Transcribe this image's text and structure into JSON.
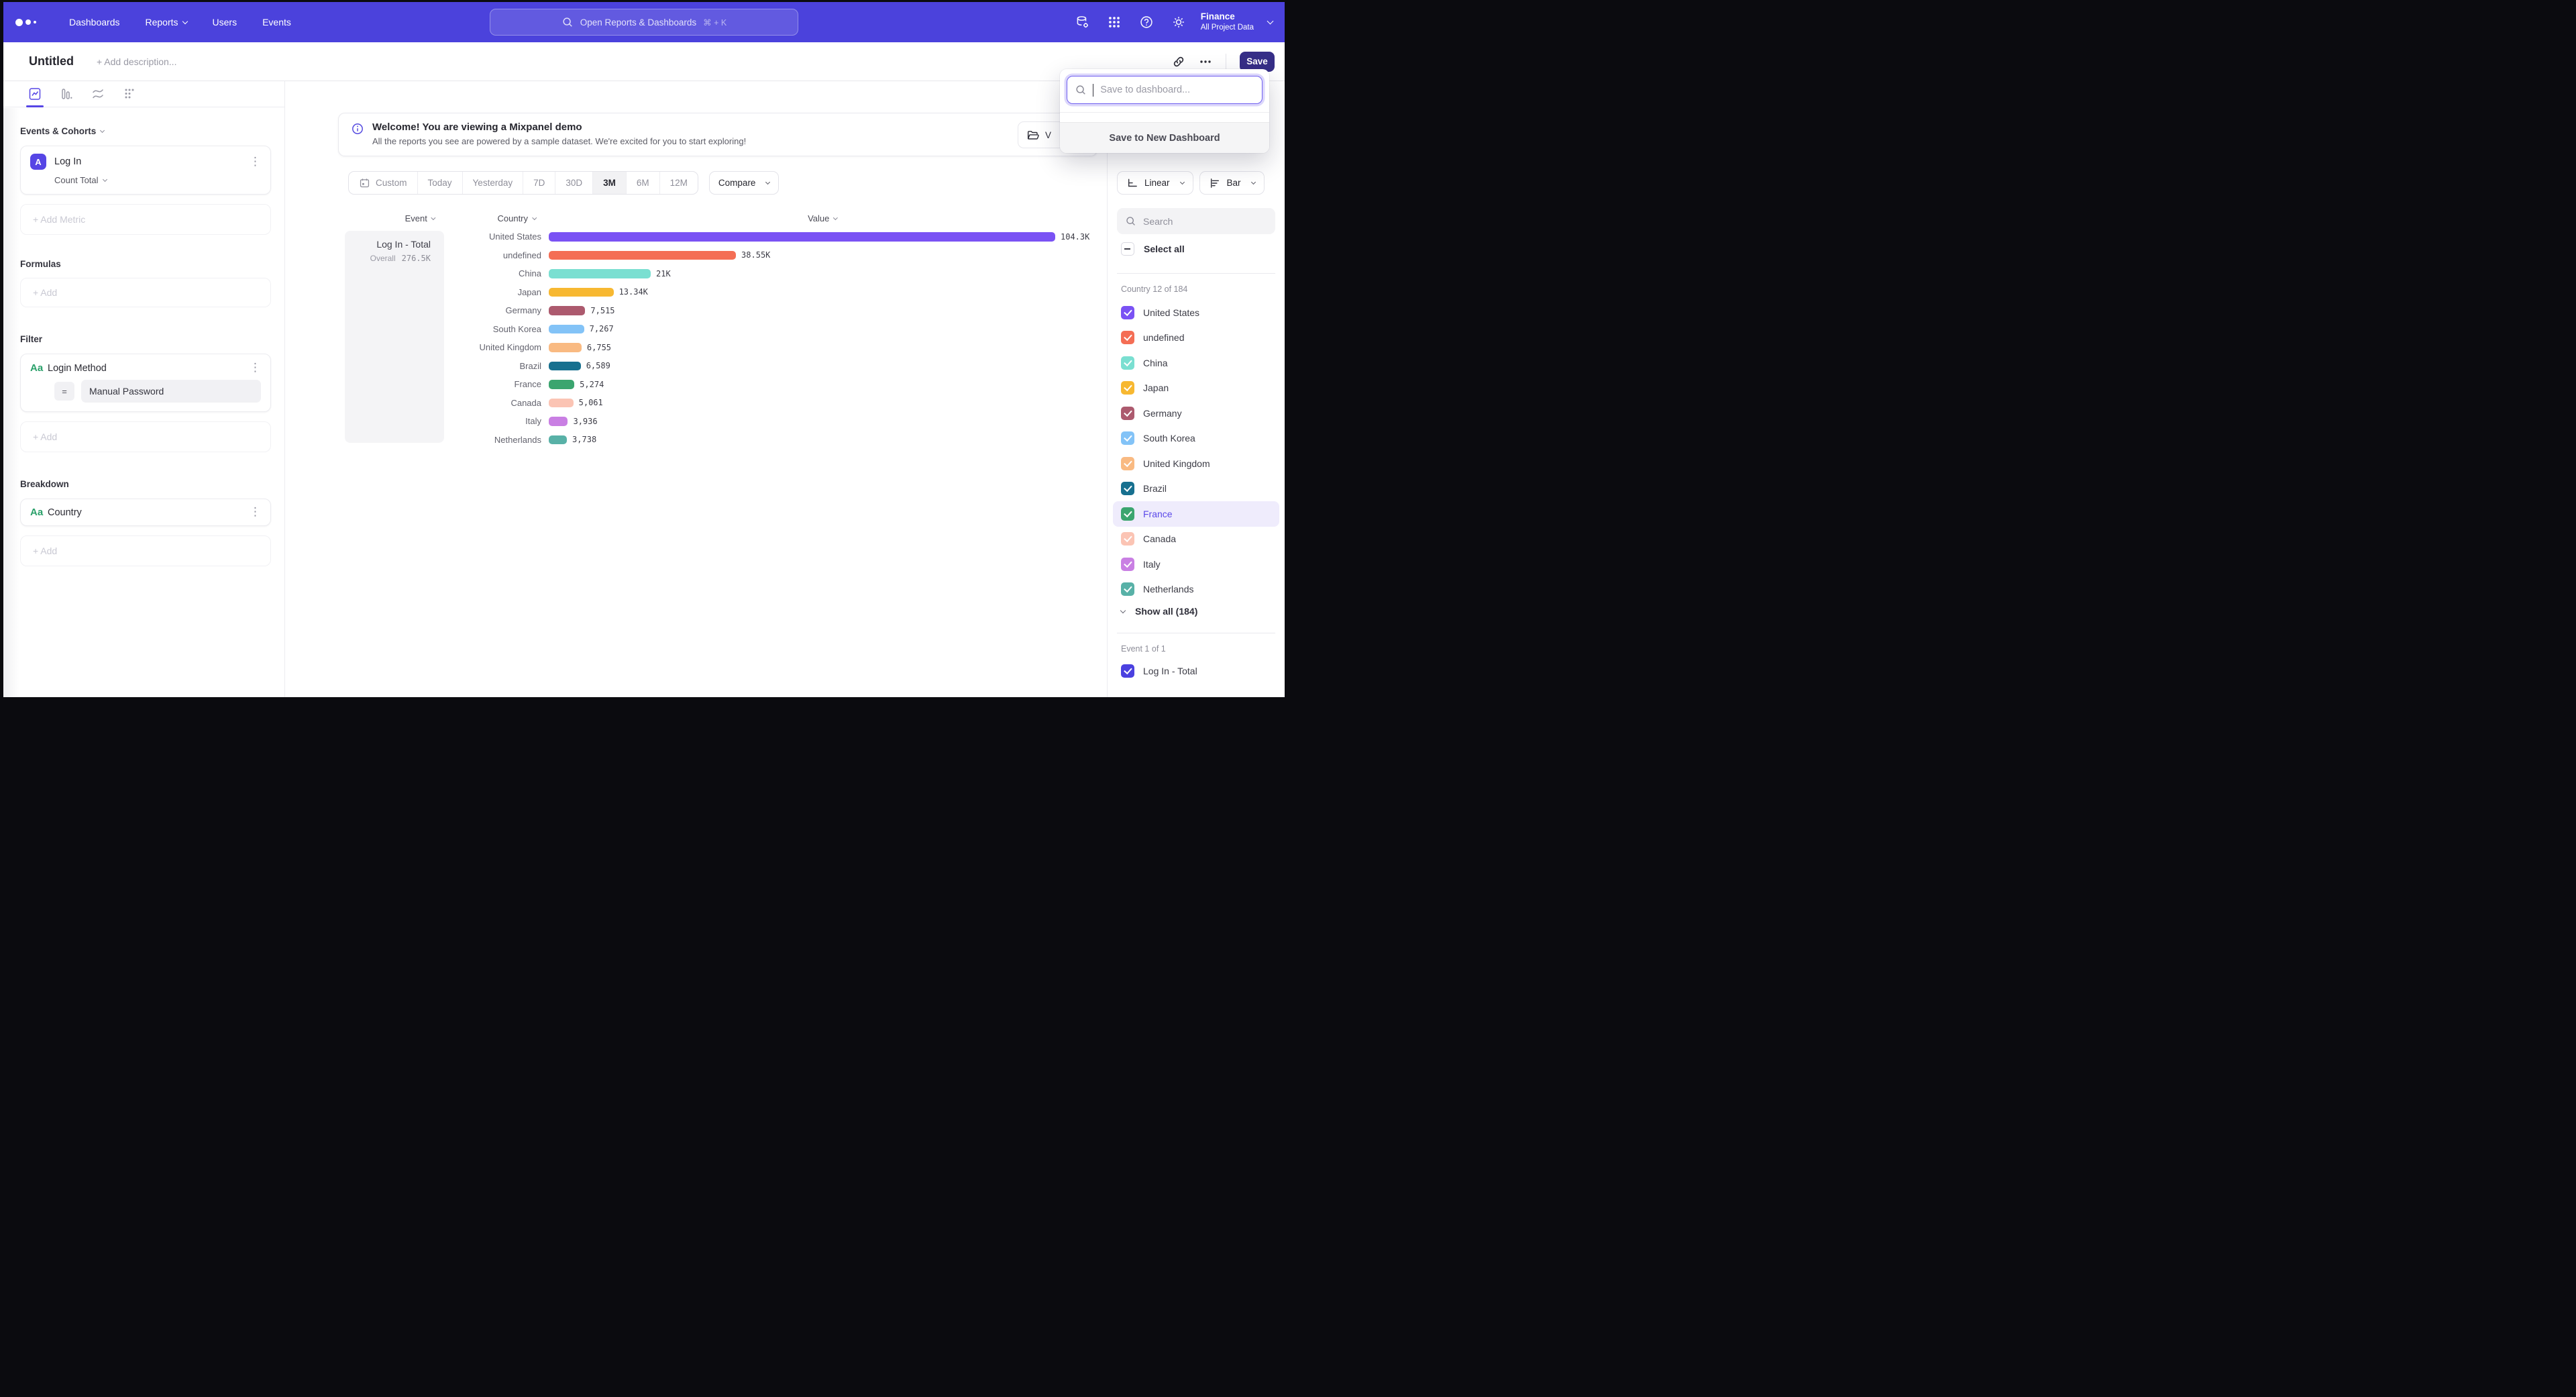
{
  "nav": {
    "items": [
      {
        "label": "Dashboards",
        "has_chevron": false
      },
      {
        "label": "Reports",
        "has_chevron": true
      },
      {
        "label": "Users",
        "has_chevron": false
      },
      {
        "label": "Events",
        "has_chevron": false
      }
    ],
    "search": {
      "placeholder": "Open Reports & Dashboards",
      "shortcut": "⌘ + K"
    },
    "project": {
      "name": "Finance",
      "scope": "All Project Data"
    },
    "icons": [
      "mixpanel-logo",
      "data-settings-icon",
      "apps-grid-icon",
      "help-icon",
      "gear-icon",
      "chevron-down-icon"
    ]
  },
  "titlebar": {
    "title": "Untitled",
    "description_placeholder": "+ Add description...",
    "save_label": "Save",
    "icons": [
      "link-icon",
      "ellipsis-icon"
    ]
  },
  "sidebar": {
    "tabs": [
      "insights",
      "funnels",
      "retention",
      "flows"
    ],
    "events": {
      "heading": "Events & Cohorts",
      "metric_badge": "A",
      "metric_name": "Log In",
      "aggregation": "Count Total",
      "add_label": "+ Add Metric"
    },
    "formulas": {
      "heading": "Formulas",
      "add_label": "+ Add"
    },
    "filter": {
      "heading": "Filter",
      "type_badge": "Aa",
      "property": "Login Method",
      "operator": "=",
      "value": "Manual Password",
      "add_label": "+ Add"
    },
    "breakdown": {
      "heading": "Breakdown",
      "type_badge": "Aa",
      "property": "Country",
      "add_label": "+ Add"
    }
  },
  "banner": {
    "title": "Welcome! You are viewing a Mixpanel demo",
    "body": "All the reports you see are powered by a sample dataset. We're excited for you to start exploring!",
    "side_button_visible_text": "V"
  },
  "controls": {
    "ranges": [
      {
        "label": "Custom",
        "icon": "calendar",
        "selected": false
      },
      {
        "label": "Today",
        "selected": false
      },
      {
        "label": "Yesterday",
        "selected": false
      },
      {
        "label": "7D",
        "selected": false
      },
      {
        "label": "30D",
        "selected": false
      },
      {
        "label": "3M",
        "selected": true
      },
      {
        "label": "6M",
        "selected": false
      },
      {
        "label": "12M",
        "selected": false
      }
    ],
    "compare_label": "Compare",
    "line_type_label": "Linear",
    "chart_type_label": "Bar"
  },
  "chart_data": {
    "type": "bar",
    "orientation": "horizontal",
    "headers": {
      "event": "Event",
      "breakdown": "Country",
      "value": "Value"
    },
    "series_summary": {
      "name": "Log In - Total",
      "overall_label": "Overall",
      "overall_value": "276.5K"
    },
    "xlabel": "Value",
    "ylabel": "Country",
    "max_value": 104300,
    "rows": [
      {
        "country": "United States",
        "value": 104300,
        "label": "104.3K",
        "color": "#7a52f4"
      },
      {
        "country": "undefined",
        "value": 38550,
        "label": "38.55K",
        "color": "#f46e55"
      },
      {
        "country": "China",
        "value": 21000,
        "label": "21K",
        "color": "#7adfd1"
      },
      {
        "country": "Japan",
        "value": 13340,
        "label": "13.34K",
        "color": "#f7b831"
      },
      {
        "country": "Germany",
        "value": 7515,
        "label": "7,515",
        "color": "#ac5a6e"
      },
      {
        "country": "South Korea",
        "value": 7267,
        "label": "7,267",
        "color": "#83c3f7"
      },
      {
        "country": "United Kingdom",
        "value": 6755,
        "label": "6,755",
        "color": "#f9ba82"
      },
      {
        "country": "Brazil",
        "value": 6589,
        "label": "6,589",
        "color": "#17708f"
      },
      {
        "country": "France",
        "value": 5274,
        "label": "5,274",
        "color": "#3ba56f"
      },
      {
        "country": "Canada",
        "value": 5061,
        "label": "5,061",
        "color": "#fbc4b4"
      },
      {
        "country": "Italy",
        "value": 3936,
        "label": "3,936",
        "color": "#c97fe3"
      },
      {
        "country": "Netherlands",
        "value": 3738,
        "label": "3,738",
        "color": "#58b1a7"
      }
    ]
  },
  "save_popup": {
    "placeholder": "Save to dashboard...",
    "new_dashboard_label": "Save to New Dashboard"
  },
  "right_panel": {
    "search_placeholder": "Search",
    "select_all_label": "Select all",
    "country_group_label": "Country 12 of 184",
    "countries": [
      {
        "label": "United States",
        "color": "#7a52f4",
        "checked": true,
        "highlighted": false
      },
      {
        "label": "undefined",
        "color": "#f46e55",
        "checked": true,
        "highlighted": false
      },
      {
        "label": "China",
        "color": "#7adfd1",
        "checked": true,
        "highlighted": false
      },
      {
        "label": "Japan",
        "color": "#f7b831",
        "checked": true,
        "highlighted": false
      },
      {
        "label": "Germany",
        "color": "#ac5a6e",
        "checked": true,
        "highlighted": false
      },
      {
        "label": "South Korea",
        "color": "#83c3f7",
        "checked": true,
        "highlighted": false
      },
      {
        "label": "United Kingdom",
        "color": "#f9ba82",
        "checked": true,
        "highlighted": false
      },
      {
        "label": "Brazil",
        "color": "#17708f",
        "checked": true,
        "highlighted": false
      },
      {
        "label": "France",
        "color": "#3ba56f",
        "checked": true,
        "highlighted": true
      },
      {
        "label": "Canada",
        "color": "#fbc4b4",
        "checked": true,
        "highlighted": false
      },
      {
        "label": "Italy",
        "color": "#c97fe3",
        "checked": true,
        "highlighted": false
      },
      {
        "label": "Netherlands",
        "color": "#58b1a7",
        "checked": true,
        "highlighted": false
      }
    ],
    "show_all_label": "Show all (184)",
    "event_group_label": "Event 1 of 1",
    "event_item": {
      "label": "Log In - Total",
      "color": "#4b41e0",
      "checked": true
    }
  },
  "accent_colors": {
    "nav_purple": "#4b42dc",
    "save_button": "#362e87",
    "focus_ring": "#6e5ef0",
    "highlight_row": "#efecfc"
  }
}
